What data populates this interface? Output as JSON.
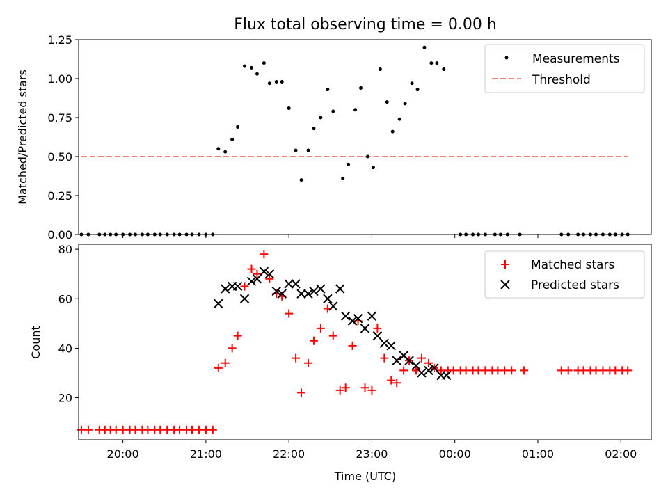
{
  "chart_data": [
    {
      "type": "scatter",
      "title": "Flux total observing time = 0.00 h",
      "xlabel": "",
      "ylabel": "Matched/Predicted stars",
      "xlim": [
        "19:28",
        "02:22"
      ],
      "ylim": [
        0,
        1.25
      ],
      "yticks": [
        "0.00",
        "0.25",
        "0.50",
        "0.75",
        "1.00",
        "1.25"
      ],
      "legend_position": "top-right",
      "series": [
        {
          "name": "Measurements",
          "kind": "points",
          "color": "#000000",
          "points": [
            [
              "19:30",
              0
            ],
            [
              "19:35",
              0
            ],
            [
              "19:43",
              0
            ],
            [
              "19:47",
              0
            ],
            [
              "19:51",
              0
            ],
            [
              "19:55",
              0
            ],
            [
              "20:00",
              0
            ],
            [
              "20:05",
              0
            ],
            [
              "20:09",
              0
            ],
            [
              "20:14",
              0
            ],
            [
              "20:18",
              0
            ],
            [
              "20:23",
              0
            ],
            [
              "20:27",
              0
            ],
            [
              "20:32",
              0
            ],
            [
              "20:37",
              0
            ],
            [
              "20:41",
              0
            ],
            [
              "20:46",
              0
            ],
            [
              "20:50",
              0
            ],
            [
              "20:55",
              0
            ],
            [
              "21:00",
              0
            ],
            [
              "21:05",
              0
            ],
            [
              "21:09",
              0.55
            ],
            [
              "21:14",
              0.53
            ],
            [
              "21:19",
              0.61
            ],
            [
              "21:23",
              0.69
            ],
            [
              "21:28",
              1.08
            ],
            [
              "21:33",
              1.07
            ],
            [
              "21:37",
              1.03
            ],
            [
              "21:42",
              1.1
            ],
            [
              "21:46",
              0.97
            ],
            [
              "21:51",
              0.98
            ],
            [
              "21:55",
              0.98
            ],
            [
              "22:00",
              0.81
            ],
            [
              "22:05",
              0.54
            ],
            [
              "22:09",
              0.35
            ],
            [
              "22:14",
              0.54
            ],
            [
              "22:18",
              0.68
            ],
            [
              "22:23",
              0.75
            ],
            [
              "22:28",
              0.93
            ],
            [
              "22:32",
              0.79
            ],
            [
              "22:39",
              0.36
            ],
            [
              "22:43",
              0.45
            ],
            [
              "22:48",
              0.8
            ],
            [
              "22:52",
              0.94
            ],
            [
              "22:57",
              0.5
            ],
            [
              "23:01",
              0.43
            ],
            [
              "23:06",
              1.06
            ],
            [
              "23:11",
              0.85
            ],
            [
              "23:15",
              0.66
            ],
            [
              "23:20",
              0.74
            ],
            [
              "23:24",
              0.84
            ],
            [
              "23:29",
              0.97
            ],
            [
              "23:33",
              0.93
            ],
            [
              "23:38",
              1.2
            ],
            [
              "23:43",
              1.1
            ],
            [
              "23:47",
              1.1
            ],
            [
              "23:52",
              1.06
            ],
            [
              "00:04",
              0
            ],
            [
              "00:08",
              0
            ],
            [
              "00:13",
              0
            ],
            [
              "00:17",
              0
            ],
            [
              "00:22",
              0
            ],
            [
              "00:29",
              0
            ],
            [
              "00:33",
              0
            ],
            [
              "00:38",
              0
            ],
            [
              "00:47",
              0
            ],
            [
              "01:17",
              0
            ],
            [
              "01:22",
              0
            ],
            [
              "01:29",
              0
            ],
            [
              "01:33",
              0
            ],
            [
              "01:38",
              0
            ],
            [
              "01:42",
              0
            ],
            [
              "01:47",
              0
            ],
            [
              "01:52",
              0
            ],
            [
              "01:56",
              0
            ],
            [
              "02:01",
              0
            ],
            [
              "02:05",
              0
            ]
          ]
        },
        {
          "name": "Threshold",
          "kind": "line",
          "color": "#ff7f7f",
          "points": [
            [
              "19:30",
              0.5
            ],
            [
              "02:05",
              0.5
            ]
          ]
        }
      ]
    },
    {
      "type": "scatter",
      "title": "",
      "xlabel": "Time (UTC)",
      "ylabel": "Count",
      "xlim": [
        "19:28",
        "02:22"
      ],
      "ylim": [
        3,
        82
      ],
      "yticks": [
        "20",
        "40",
        "60",
        "80"
      ],
      "xticks": [
        "20:00",
        "21:00",
        "22:00",
        "23:00",
        "00:00",
        "01:00",
        "02:00"
      ],
      "legend_position": "top-right",
      "series": [
        {
          "name": "Matched stars",
          "marker": "plus",
          "color": "#ff0000",
          "points": [
            [
              "19:30",
              7
            ],
            [
              "19:35",
              7
            ],
            [
              "19:43",
              7
            ],
            [
              "19:47",
              7
            ],
            [
              "19:51",
              7
            ],
            [
              "19:55",
              7
            ],
            [
              "20:00",
              7
            ],
            [
              "20:05",
              7
            ],
            [
              "20:09",
              7
            ],
            [
              "20:14",
              7
            ],
            [
              "20:18",
              7
            ],
            [
              "20:23",
              7
            ],
            [
              "20:27",
              7
            ],
            [
              "20:32",
              7
            ],
            [
              "20:37",
              7
            ],
            [
              "20:41",
              7
            ],
            [
              "20:46",
              7
            ],
            [
              "20:50",
              7
            ],
            [
              "20:55",
              7
            ],
            [
              "21:00",
              7
            ],
            [
              "21:05",
              7
            ],
            [
              "21:09",
              32
            ],
            [
              "21:14",
              34
            ],
            [
              "21:19",
              40
            ],
            [
              "21:23",
              45
            ],
            [
              "21:28",
              65
            ],
            [
              "21:33",
              72
            ],
            [
              "21:37",
              70
            ],
            [
              "21:42",
              78
            ],
            [
              "21:46",
              68
            ],
            [
              "21:51",
              62
            ],
            [
              "21:55",
              61
            ],
            [
              "22:00",
              54
            ],
            [
              "22:05",
              36
            ],
            [
              "22:09",
              22
            ],
            [
              "22:14",
              34
            ],
            [
              "22:18",
              43
            ],
            [
              "22:23",
              48
            ],
            [
              "22:28",
              56
            ],
            [
              "22:32",
              45
            ],
            [
              "22:37",
              23
            ],
            [
              "22:41",
              24
            ],
            [
              "22:46",
              41
            ],
            [
              "22:50",
              51
            ],
            [
              "22:55",
              24
            ],
            [
              "23:00",
              23
            ],
            [
              "23:04",
              48
            ],
            [
              "23:09",
              36
            ],
            [
              "23:14",
              27
            ],
            [
              "23:18",
              26
            ],
            [
              "23:23",
              31
            ],
            [
              "23:27",
              35
            ],
            [
              "23:32",
              31
            ],
            [
              "23:36",
              36
            ],
            [
              "23:41",
              34
            ],
            [
              "23:45",
              32
            ],
            [
              "23:50",
              31
            ],
            [
              "23:55",
              31
            ],
            [
              "23:59",
              31
            ],
            [
              "00:04",
              31
            ],
            [
              "00:08",
              31
            ],
            [
              "00:13",
              31
            ],
            [
              "00:17",
              31
            ],
            [
              "00:22",
              31
            ],
            [
              "00:27",
              31
            ],
            [
              "00:31",
              31
            ],
            [
              "00:36",
              31
            ],
            [
              "00:41",
              31
            ],
            [
              "00:50",
              31
            ],
            [
              "01:17",
              31
            ],
            [
              "01:22",
              31
            ],
            [
              "01:29",
              31
            ],
            [
              "01:33",
              31
            ],
            [
              "01:38",
              31
            ],
            [
              "01:42",
              31
            ],
            [
              "01:47",
              31
            ],
            [
              "01:52",
              31
            ],
            [
              "01:56",
              31
            ],
            [
              "02:01",
              31
            ],
            [
              "02:05",
              31
            ]
          ]
        },
        {
          "name": "Predicted stars",
          "marker": "x",
          "color": "#000000",
          "points": [
            [
              "21:09",
              58
            ],
            [
              "21:14",
              64
            ],
            [
              "21:19",
              65
            ],
            [
              "21:23",
              65
            ],
            [
              "21:28",
              60
            ],
            [
              "21:33",
              67
            ],
            [
              "21:37",
              68
            ],
            [
              "21:42",
              71
            ],
            [
              "21:46",
              70
            ],
            [
              "21:51",
              63
            ],
            [
              "21:55",
              62
            ],
            [
              "22:00",
              66
            ],
            [
              "22:05",
              66
            ],
            [
              "22:09",
              62
            ],
            [
              "22:14",
              62
            ],
            [
              "22:18",
              63
            ],
            [
              "22:23",
              64
            ],
            [
              "22:28",
              60
            ],
            [
              "22:32",
              57
            ],
            [
              "22:37",
              64
            ],
            [
              "22:41",
              53
            ],
            [
              "22:46",
              51
            ],
            [
              "22:50",
              52
            ],
            [
              "22:55",
              48
            ],
            [
              "23:00",
              53
            ],
            [
              "23:04",
              45
            ],
            [
              "23:09",
              42
            ],
            [
              "23:14",
              41
            ],
            [
              "23:18",
              35
            ],
            [
              "23:23",
              37
            ],
            [
              "23:27",
              35
            ],
            [
              "23:32",
              33
            ],
            [
              "23:36",
              30
            ],
            [
              "23:41",
              31
            ],
            [
              "23:45",
              32
            ],
            [
              "23:50",
              29
            ],
            [
              "23:54",
              29
            ]
          ]
        }
      ]
    }
  ]
}
